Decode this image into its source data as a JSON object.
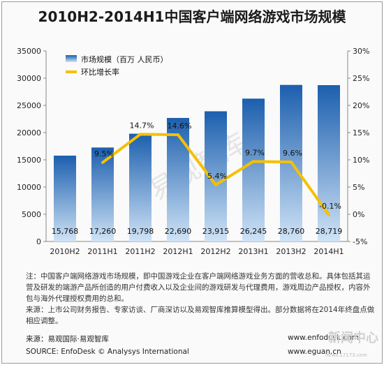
{
  "title": "2010H2-2014H1中国客户端网络游戏市场规模",
  "chart_data": {
    "type": "bar",
    "categories": [
      "2010H2",
      "2011H1",
      "2011H2",
      "2012H1",
      "2012H2",
      "2013H1",
      "2013H2",
      "2014H1"
    ],
    "series": [
      {
        "name": "市场规模（百万 人民币）",
        "type": "bar",
        "axis": "left",
        "color": "#2a78c8",
        "values": [
          15768,
          17260,
          19798,
          22690,
          23915,
          26245,
          28760,
          28719
        ],
        "labels": [
          "15,768",
          "17,260",
          "19,798",
          "22,690",
          "23,915",
          "26,245",
          "28,760",
          "28,719"
        ]
      },
      {
        "name": "环比增长率",
        "type": "line",
        "axis": "right",
        "color": "#f5c000",
        "x": [
          "2011H1",
          "2011H2",
          "2012H1",
          "2012H2",
          "2013H1",
          "2013H2",
          "2014H1"
        ],
        "values": [
          9.5,
          14.7,
          14.6,
          5.4,
          9.7,
          9.6,
          -0.1
        ],
        "labels": [
          "9.5%",
          "14.7%",
          "14.6%",
          "5.4%",
          "9.7%",
          "9.6%",
          "-0.1%"
        ]
      }
    ],
    "y_left": {
      "min": 0,
      "max": 35000,
      "ticks": [
        "0",
        "5000",
        "10000",
        "15000",
        "20000",
        "25000",
        "30000",
        "35000"
      ]
    },
    "y_right": {
      "min": -5,
      "max": 30,
      "ticks": [
        "-5%",
        "0%",
        "5%",
        "10%",
        "15%",
        "20%",
        "25%",
        "30%"
      ]
    },
    "legend": "top-left",
    "grid": false
  },
  "watermark": "易观智库",
  "notes": [
    "注：中国客户端网络游戏市场规模，即中国游戏企业在客户端网络游戏业务方面的营收总和。具体包括其运营及研发的端游产品所创造的用户付费收入以及企业间的游戏研发与代理费用，游戏周边产品授权，内容外包与海外代理授权费用的总和。",
    "来源：上市公司财务报告、专家访谈、厂商深访以及易观智库推算模型得出。部分数据将在2014年终盘点做相应调整。"
  ],
  "source_cn": "来源：易观国际·易观智库",
  "source_en": "SOURCE: EnfoDesk © Analysys International",
  "url1": "www.enfodesk.com",
  "url2": "www.eguan.cn",
  "corner_logo": "新闻中心",
  "corner_sub": "news.17173.com"
}
